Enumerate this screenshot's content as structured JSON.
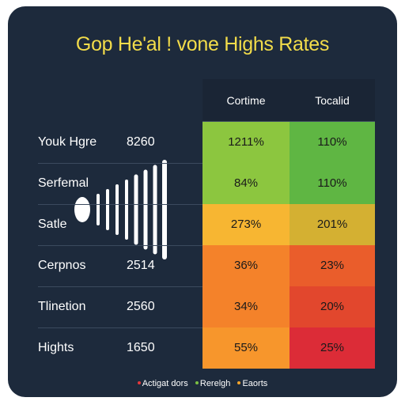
{
  "chart_data": {
    "type": "table",
    "title": "Gop He'al ! vone Highs Rates",
    "columns": [
      "Cortime",
      "Tocalid"
    ],
    "rows": [
      {
        "label": "Youk Hgre",
        "value": "8260",
        "cells": [
          "1211%",
          "110%"
        ],
        "colors": [
          "#8cc63f",
          "#5fb643"
        ]
      },
      {
        "label": "Serfemal",
        "value": "",
        "cells": [
          "84%",
          "110%"
        ],
        "colors": [
          "#8cc63f",
          "#5fb643"
        ]
      },
      {
        "label": "Satle",
        "value": "",
        "cells": [
          "273%",
          "201%"
        ],
        "colors": [
          "#f7b632",
          "#d4b032"
        ]
      },
      {
        "label": "Cerpnos",
        "value": "2514",
        "cells": [
          "36%",
          "23%"
        ],
        "colors": [
          "#f4822a",
          "#ea5d2b"
        ]
      },
      {
        "label": "Tlinetion",
        "value": "2560",
        "cells": [
          "34%",
          "20%"
        ],
        "colors": [
          "#f4822a",
          "#e2472d"
        ]
      },
      {
        "label": "Hights",
        "value": "1650",
        "cells": [
          "55%",
          "25%"
        ],
        "colors": [
          "#f7962c",
          "#dc2c37"
        ]
      }
    ],
    "legend": [
      {
        "label": "Actigat dors",
        "color": "#e5383b"
      },
      {
        "label": "Rerelgh",
        "color": "#7bc043"
      },
      {
        "label": "Eaorts",
        "color": "#f4a52b"
      }
    ]
  }
}
